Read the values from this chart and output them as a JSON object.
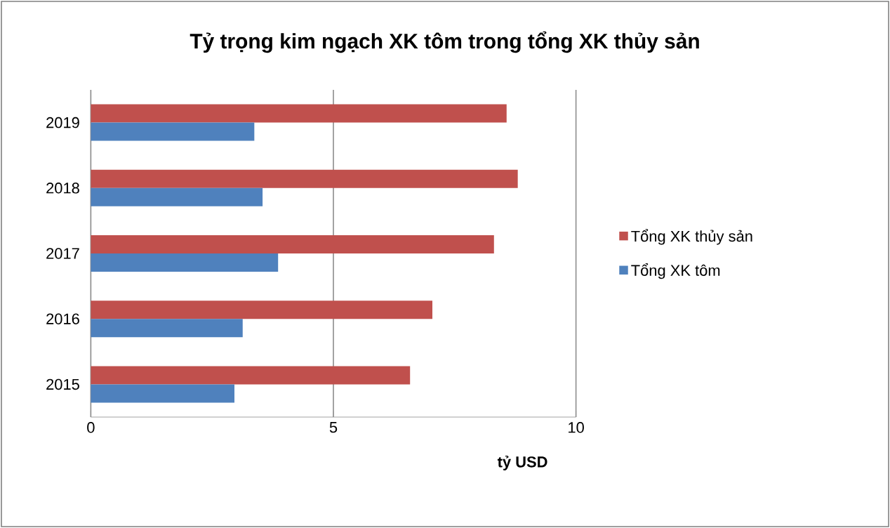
{
  "chart_data": {
    "type": "bar",
    "orientation": "horizontal",
    "title": "Tỷ trọng kim ngạch XK tôm trong tổng XK thủy sản",
    "xlabel": "tỷ USD",
    "categories": [
      "2019",
      "2018",
      "2017",
      "2016",
      "2015"
    ],
    "series": [
      {
        "name": "Tổng XK thủy sản",
        "color": "#c0504d",
        "values": [
          8.57,
          8.8,
          8.31,
          7.04,
          6.58
        ]
      },
      {
        "name": "Tổng XK tôm",
        "color": "#4f81bd",
        "values": [
          3.37,
          3.54,
          3.86,
          3.13,
          2.96
        ]
      }
    ],
    "xlim": [
      0,
      10
    ],
    "xticks": [
      0,
      5,
      10
    ],
    "grid": "x",
    "legend": "right"
  }
}
